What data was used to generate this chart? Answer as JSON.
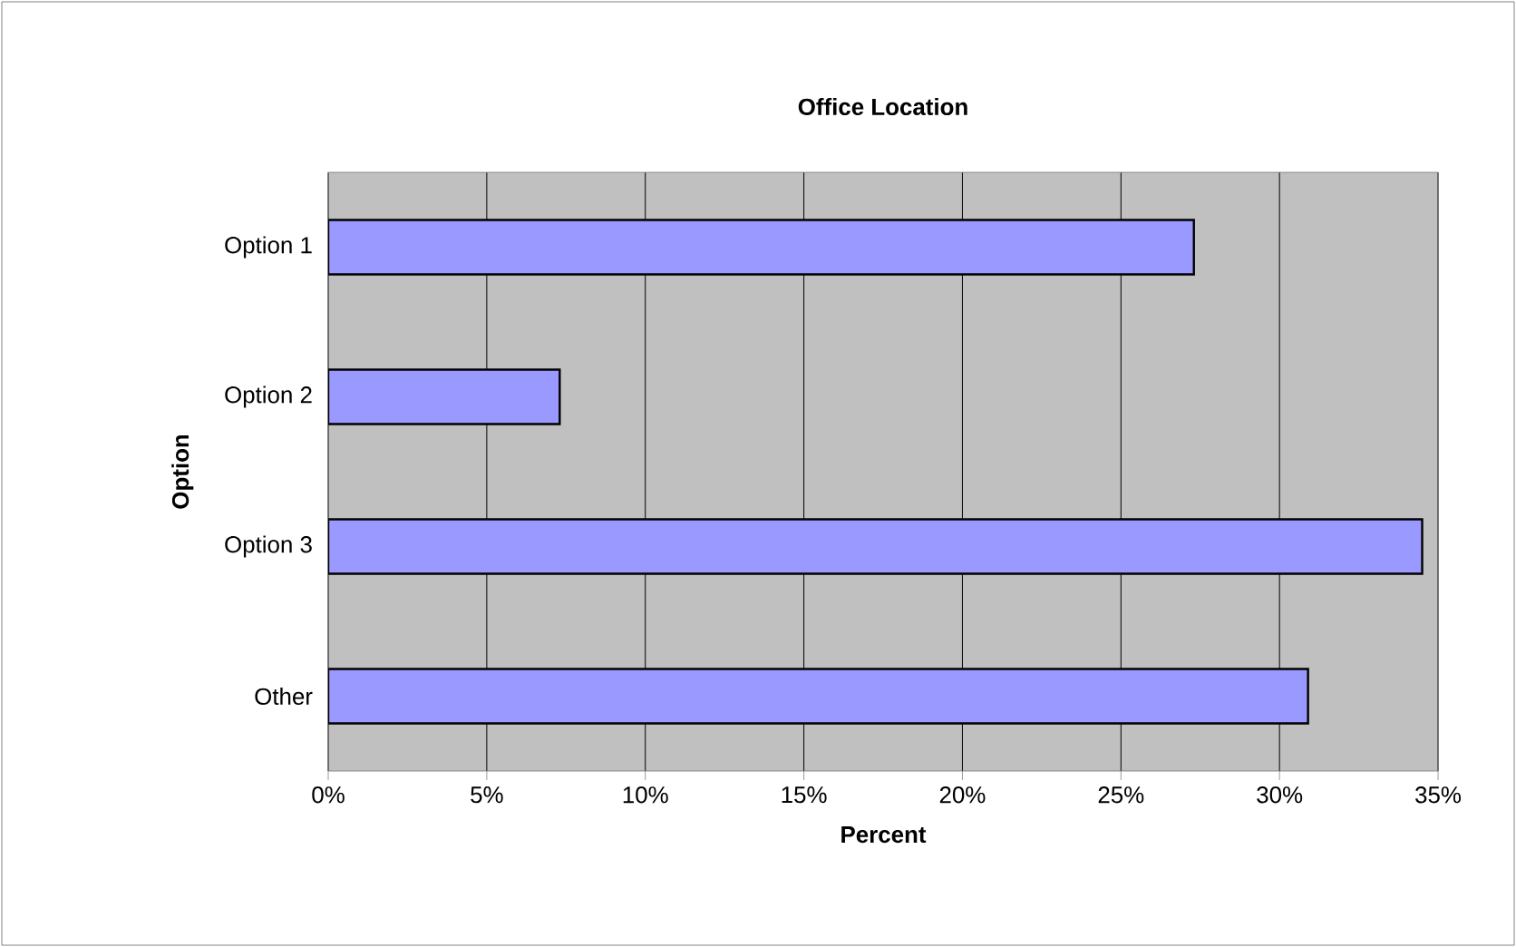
{
  "chart_data": {
    "type": "bar",
    "orientation": "horizontal",
    "title": "Office Location",
    "xlabel": "Percent",
    "ylabel": "Option",
    "categories": [
      "Option 1",
      "Option 2",
      "Option 3",
      "Other"
    ],
    "values": [
      27.3,
      7.3,
      34.5,
      30.9
    ],
    "color": "#9999ff",
    "xlim": [
      0,
      35
    ],
    "xticks": [
      {
        "value": 0,
        "label": "0%"
      },
      {
        "value": 5,
        "label": "5%"
      },
      {
        "value": 10,
        "label": "10%"
      },
      {
        "value": 15,
        "label": "15%"
      },
      {
        "value": 20,
        "label": "20%"
      },
      {
        "value": 25,
        "label": "25%"
      },
      {
        "value": 30,
        "label": "30%"
      },
      {
        "value": 35,
        "label": "35%"
      }
    ],
    "grid": "x"
  }
}
